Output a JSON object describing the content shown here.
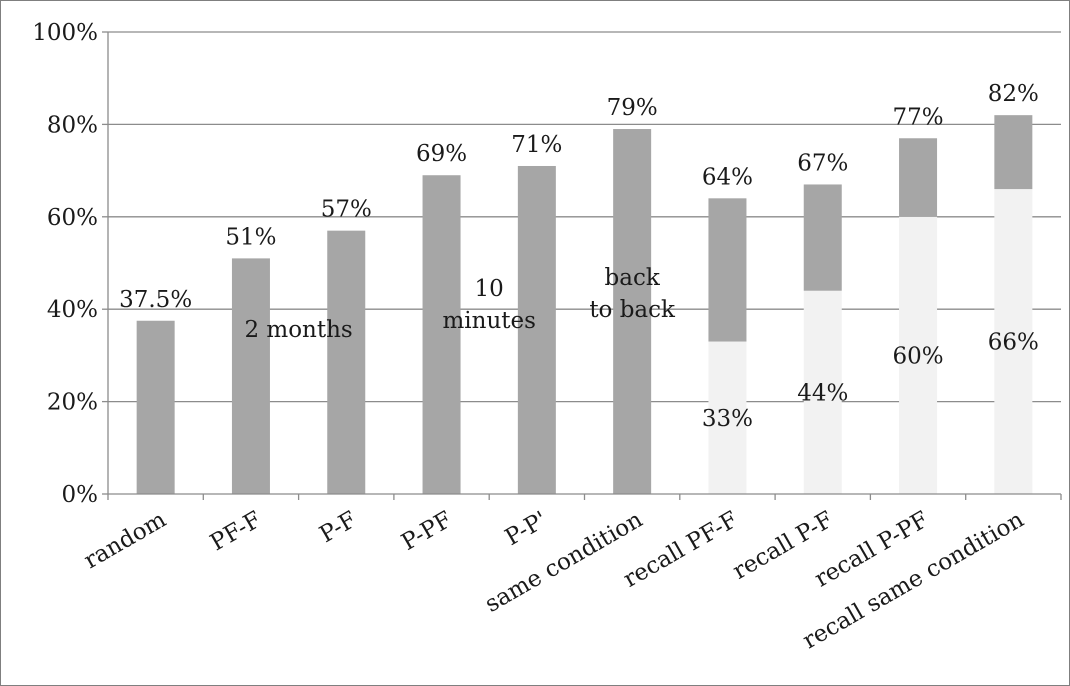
{
  "chart_data": {
    "type": "bar",
    "stacked": true,
    "categories": [
      "random",
      "PF-F",
      "P-F",
      "P-PF",
      "P-P'",
      "same condition",
      "recall PF-F",
      "recall P-F",
      "recall P-PF",
      "recall same condition"
    ],
    "totals": [
      37.5,
      51,
      57,
      69,
      71,
      79,
      64,
      67,
      77,
      82
    ],
    "base_values": [
      null,
      null,
      null,
      null,
      null,
      null,
      33,
      44,
      60,
      66
    ],
    "total_labels": [
      "37.5%",
      "51%",
      "57%",
      "69%",
      "71%",
      "79%",
      "64%",
      "67%",
      "77%",
      "82%"
    ],
    "base_labels": [
      "",
      "",
      "",
      "",
      "",
      "",
      "33%",
      "44%",
      "60%",
      "66%"
    ],
    "y_ticks": [
      0,
      20,
      40,
      60,
      80,
      100
    ],
    "y_tick_labels": [
      "0%",
      "20%",
      "40%",
      "60%",
      "80%",
      "100%"
    ],
    "ylim": [
      0,
      100
    ],
    "grid": true,
    "annotations": [
      {
        "between": [
          1,
          2
        ],
        "lines": [
          "2 months"
        ]
      },
      {
        "between": [
          3,
          4
        ],
        "lines": [
          "10",
          "minutes"
        ]
      },
      {
        "between": [
          5,
          5
        ],
        "lines": [
          "back",
          "to back"
        ]
      }
    ],
    "colors": {
      "bar": "#a6a6a6",
      "base": "#f2f2f2",
      "grid": "#8c8c8c",
      "axis": "#8c8c8c"
    }
  }
}
